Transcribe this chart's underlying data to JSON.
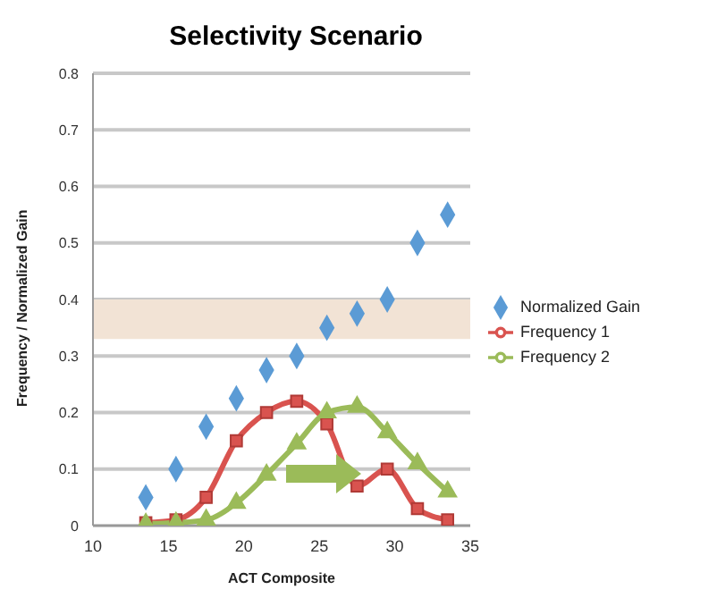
{
  "chart_data": {
    "type": "line",
    "title": "Selectivity Scenario",
    "xlabel": "ACT Composite",
    "ylabel": "Frequency / Normalized Gain",
    "x": [
      13.5,
      15.5,
      17.5,
      19.5,
      21.5,
      23.5,
      25.5,
      27.5,
      29.5,
      31.5,
      33.5
    ],
    "series": [
      {
        "name": "Normalized Gain",
        "type": "scatter",
        "marker": "diamond",
        "color": "#5b9bd5",
        "values": [
          0.05,
          0.1,
          0.175,
          0.225,
          0.275,
          0.3,
          0.35,
          0.375,
          0.4,
          0.5,
          0.55
        ]
      },
      {
        "name": "Frequency 1",
        "marker": "square",
        "color": "#d9534f",
        "values": [
          0.005,
          0.01,
          0.05,
          0.15,
          0.2,
          0.22,
          0.18,
          0.07,
          0.1,
          0.03,
          0.01
        ]
      },
      {
        "name": "Frequency 2",
        "marker": "triangle",
        "color": "#9bbb59",
        "values": [
          0.003,
          0.005,
          0.01,
          0.04,
          0.09,
          0.145,
          0.2,
          0.21,
          0.165,
          0.11,
          0.06
        ]
      }
    ],
    "bands": [
      {
        "axis": "y",
        "from": 0.33,
        "to": 0.4,
        "color": "#f2e3d5"
      }
    ],
    "xlim": [
      10,
      35
    ],
    "xticks": [
      10,
      15,
      20,
      25,
      30,
      35
    ],
    "ylim": [
      0,
      0.8
    ],
    "yticks": [
      0,
      0.1,
      0.2,
      0.3,
      0.4,
      0.5,
      0.6,
      0.7,
      0.8
    ],
    "grid": "y",
    "legend": "right"
  }
}
